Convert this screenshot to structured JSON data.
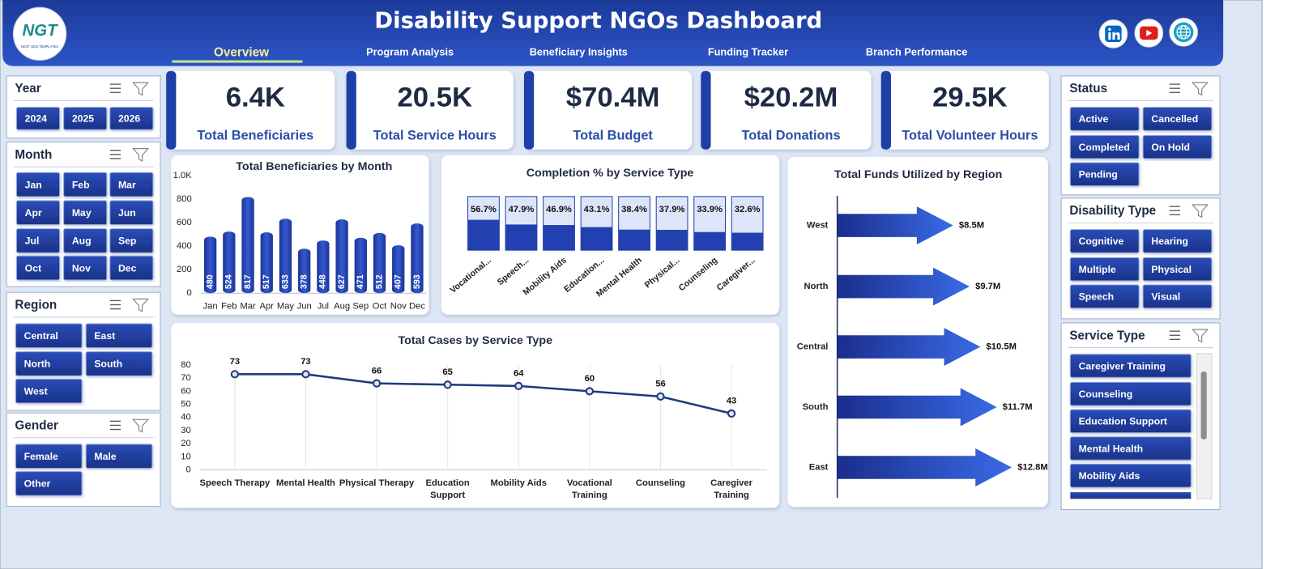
{
  "header": {
    "logo": "NGT",
    "logo_tagline": "NEXT GEN TEMPLATES",
    "title": "Disability Support NGOs Dashboard"
  },
  "nav": {
    "active": 0,
    "items": [
      "Overview",
      "Program Analysis",
      "Beneficiary Insights",
      "Funding Tracker",
      "Branch Performance"
    ]
  },
  "slicers": [
    {
      "title": "Year",
      "items": [
        "2024",
        "2025",
        "2026"
      ]
    },
    {
      "title": "Month",
      "items": [
        "Jan",
        "Feb",
        "Mar",
        "Apr",
        "May",
        "Jun",
        "Jul",
        "Aug",
        "Sep",
        "Oct",
        "Nov",
        "Dec"
      ]
    },
    {
      "title": "Region",
      "items": [
        "Central",
        "East",
        "North",
        "South",
        "West"
      ]
    },
    {
      "title": "Gender",
      "items": [
        "Female",
        "Male",
        "Other"
      ]
    },
    {
      "title": "Status",
      "items": [
        "Active",
        "Cancelled",
        "Completed",
        "On Hold",
        "Pending"
      ]
    },
    {
      "title": "Disability Type",
      "items": [
        "Cognitive",
        "Hearing",
        "Multiple",
        "Physical",
        "Speech",
        "Visual"
      ]
    },
    {
      "title": "Service Type",
      "items": [
        "Caregiver Training",
        "Counseling",
        "Education Support",
        "Mental Health",
        "Mobility Aids"
      ]
    }
  ],
  "kpis": [
    {
      "value": "6.4K",
      "label": "Total Beneficiaries"
    },
    {
      "value": "20.5K",
      "label": "Total Service Hours"
    },
    {
      "value": "$70.4M",
      "label": "Total Budget"
    },
    {
      "value": "$20.2M",
      "label": "Total Donations"
    },
    {
      "value": "29.5K",
      "label": "Total Volunteer Hours"
    }
  ],
  "chart_data": [
    {
      "type": "bar",
      "title": "Total Beneficiaries by Month",
      "categories": [
        "Jan",
        "Feb",
        "Mar",
        "Apr",
        "May",
        "Jun",
        "Jul",
        "Aug",
        "Sep",
        "Oct",
        "Nov",
        "Dec"
      ],
      "values": [
        480,
        524,
        817,
        517,
        633,
        378,
        448,
        627,
        471,
        512,
        407,
        593
      ],
      "color": "#2340b0",
      "ylim": [
        0,
        1000
      ],
      "yticks": [
        0,
        200,
        400,
        600,
        800,
        {
          "value": 1000,
          "label": "1.0K"
        }
      ]
    },
    {
      "type": "progress",
      "title": "Completion % by Service Type",
      "categories": [
        "Vocational...",
        "Speech...",
        "Mobility Aids",
        "Education...",
        "Mental Health",
        "Physical...",
        "Counseling",
        "Caregiver..."
      ],
      "values": [
        56.7,
        47.9,
        46.9,
        43.1,
        38.4,
        37.9,
        33.9,
        32.6
      ],
      "value_labels": [
        "56.7%",
        "47.9%",
        "46.9%",
        "43.1%",
        "38.4%",
        "37.9%",
        "33.9%",
        "32.6%"
      ],
      "ylim": [
        0,
        100
      ],
      "color": "#2340b0",
      "track_color": "#dde6f8"
    },
    {
      "type": "arrow",
      "title": "Total Funds Utilized by Region",
      "categories": [
        "West",
        "North",
        "Central",
        "South",
        "East"
      ],
      "values": [
        8500000,
        9700000,
        10500000,
        11700000,
        12800000
      ],
      "value_labels": [
        "$8.5M",
        "$9.7M",
        "$10.5M",
        "$11.7M",
        "$12.8M"
      ],
      "xlim": [
        0,
        14000000
      ],
      "color": "#2448c8"
    },
    {
      "type": "line",
      "title": "Total Cases by Service Type",
      "categories": [
        "Speech Therapy",
        "Mental Health",
        "Physical Therapy",
        "Education Support",
        "Mobility Aids",
        "Vocational Training",
        "Counseling",
        "Caregiver Training"
      ],
      "values": [
        73,
        73,
        66,
        65,
        64,
        60,
        56,
        43
      ],
      "ylim": [
        0,
        80
      ],
      "yticks": [
        0,
        10,
        20,
        30,
        40,
        50,
        60,
        70,
        80
      ],
      "color": "#1f3a7a",
      "grid": true
    }
  ]
}
